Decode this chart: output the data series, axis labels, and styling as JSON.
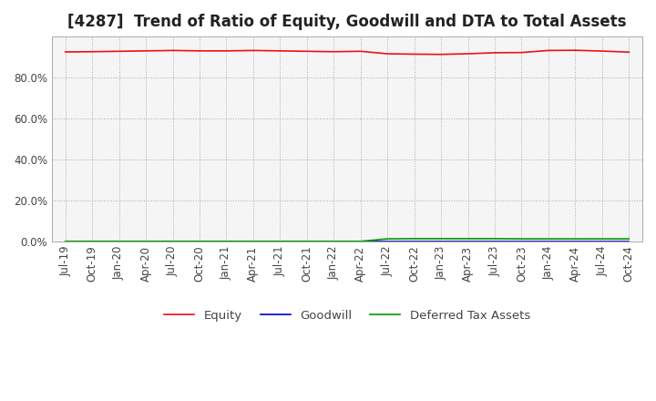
{
  "title": "[4287]  Trend of Ratio of Equity, Goodwill and DTA to Total Assets",
  "ylim": [
    0,
    1.0
  ],
  "yticks": [
    0.0,
    0.2,
    0.4,
    0.6,
    0.8
  ],
  "ytick_labels": [
    "0.0%",
    "20.0%",
    "40.0%",
    "60.0%",
    "80.0%"
  ],
  "x_labels": [
    "Jul-19",
    "Oct-19",
    "Jan-20",
    "Apr-20",
    "Jul-20",
    "Oct-20",
    "Jan-21",
    "Apr-21",
    "Jul-21",
    "Oct-21",
    "Jan-22",
    "Apr-22",
    "Jul-22",
    "Oct-22",
    "Jan-23",
    "Apr-23",
    "Jul-23",
    "Oct-23",
    "Jan-24",
    "Apr-24",
    "Jul-24",
    "Oct-24"
  ],
  "equity": [
    0.925,
    0.926,
    0.928,
    0.93,
    0.932,
    0.93,
    0.93,
    0.932,
    0.93,
    0.928,
    0.926,
    0.928,
    0.916,
    0.914,
    0.913,
    0.916,
    0.921,
    0.922,
    0.932,
    0.933,
    0.929,
    0.924
  ],
  "goodwill": [
    0.0,
    0.0,
    0.0,
    0.0,
    0.0,
    0.0,
    0.0,
    0.0,
    0.0,
    0.0,
    0.0,
    0.0,
    0.0,
    0.0,
    0.0,
    0.0,
    0.0,
    0.0,
    0.0,
    0.0,
    0.0,
    0.0
  ],
  "dta": [
    0.0,
    0.0,
    0.0,
    0.0,
    0.0,
    0.0,
    0.0,
    0.0,
    0.0,
    0.0,
    0.0,
    0.0,
    0.012,
    0.013,
    0.013,
    0.013,
    0.013,
    0.012,
    0.012,
    0.012,
    0.012,
    0.012
  ],
  "equity_color": "#ee1111",
  "goodwill_color": "#0000cc",
  "dta_color": "#009900",
  "background_color": "#ffffff",
  "plot_bg_color": "#f5f5f5",
  "grid_color": "#aaaaaa",
  "title_fontsize": 12,
  "tick_fontsize": 8.5,
  "legend_fontsize": 9.5
}
